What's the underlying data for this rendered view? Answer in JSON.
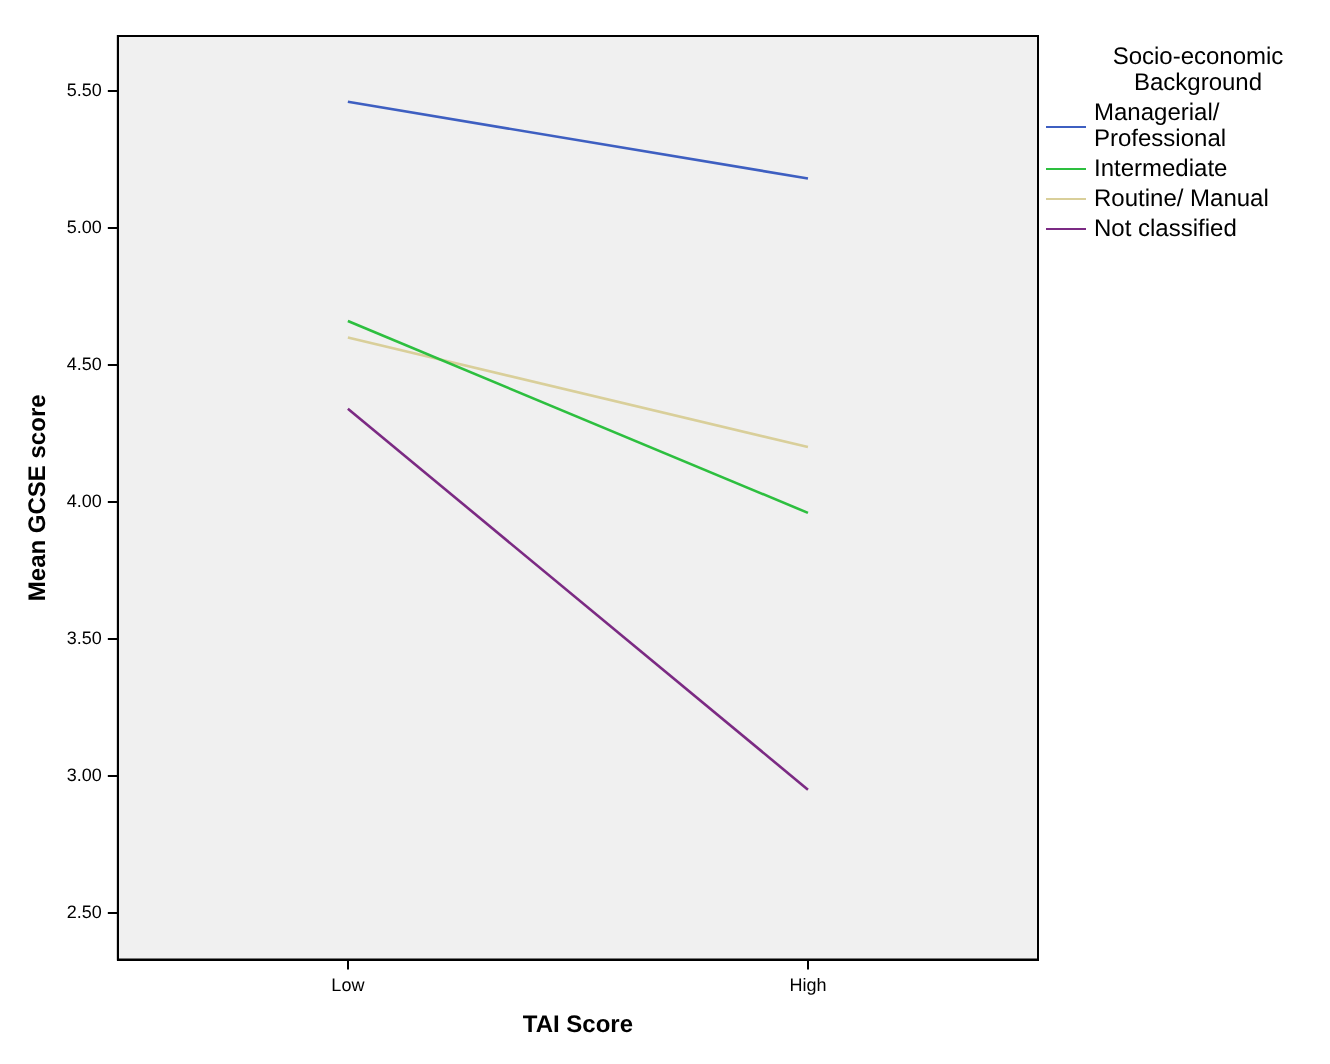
{
  "chart_data": {
    "type": "line",
    "xlabel": "TAI Score",
    "ylabel": "Mean GCSE score",
    "legend_title": "Socio-economic Background",
    "categories": [
      "Low",
      "High"
    ],
    "series": [
      {
        "name": "Managerial/ Professional",
        "color": "#3e5fc1",
        "values": [
          5.46,
          5.18
        ]
      },
      {
        "name": "Intermediate",
        "color": "#2dbf3f",
        "values": [
          4.66,
          3.96
        ]
      },
      {
        "name": "Routine/ Manual",
        "color": "#d9cf9a",
        "values": [
          4.6,
          4.2
        ]
      },
      {
        "name": "Not classified",
        "color": "#7b2a83",
        "values": [
          4.34,
          2.95
        ]
      }
    ],
    "ylim": [
      2.33,
      5.7
    ],
    "yticks": [
      {
        "value": 2.5,
        "label": "2.50"
      },
      {
        "value": 3,
        "label": "3.00"
      },
      {
        "value": 3.5,
        "label": "3.50"
      },
      {
        "value": 4,
        "label": "4.00"
      },
      {
        "value": 4.5,
        "label": "4.50"
      },
      {
        "value": 5,
        "label": "5.00"
      },
      {
        "value": 5.5,
        "label": "5.50"
      }
    ],
    "grid": false,
    "legend": "right",
    "marker": "none",
    "line_style": "solid"
  }
}
